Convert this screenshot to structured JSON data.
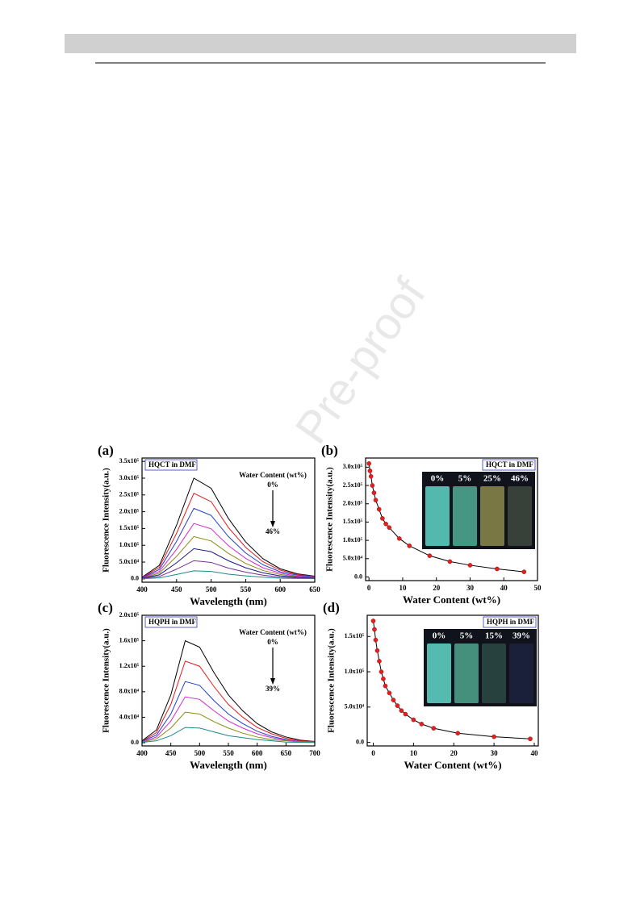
{
  "watermark": "Pre-proof",
  "chart_data": [
    {
      "type": "line",
      "panel": "(a)",
      "title": "HQCT in DMF",
      "annotation": "Water Content (wt%)",
      "arrow_start": "0%",
      "arrow_end": "46%",
      "xlabel": "Wavelength (nm)",
      "ylabel": "Fluorescence Intensity(a.u.)",
      "x": [
        400,
        425,
        450,
        475,
        500,
        525,
        550,
        575,
        600,
        625,
        650
      ],
      "xlim": [
        400,
        650
      ],
      "xticks": [
        400,
        450,
        500,
        550,
        600,
        650
      ],
      "ylim": [
        -10000,
        360000
      ],
      "yticks": [
        {
          "value": 0,
          "label": "0.0"
        },
        {
          "value": 50000,
          "label": "5.0x10⁴"
        },
        {
          "value": 100000,
          "label": "1.0x10⁵"
        },
        {
          "value": 150000,
          "label": "1.5x10⁵"
        },
        {
          "value": 200000,
          "label": "2.0x10⁵"
        },
        {
          "value": 250000,
          "label": "2.5x10⁵"
        },
        {
          "value": 300000,
          "label": "3.0x10⁵"
        },
        {
          "value": 350000,
          "label": "3.5x10⁵"
        }
      ],
      "series": [
        {
          "color": "#000000",
          "values": [
            5000,
            40000,
            160000,
            300000,
            270000,
            180000,
            110000,
            60000,
            30000,
            15000,
            8000
          ]
        },
        {
          "color": "#e41a1c",
          "values": [
            4000,
            34000,
            136000,
            255000,
            230000,
            153000,
            94000,
            51000,
            26000,
            13000,
            7000
          ]
        },
        {
          "color": "#1f3fd1",
          "values": [
            3500,
            28000,
            112000,
            210000,
            189000,
            126000,
            77000,
            42000,
            21000,
            11000,
            6000
          ]
        },
        {
          "color": "#d12bd1",
          "values": [
            3000,
            22000,
            88000,
            165000,
            149000,
            99000,
            61000,
            33000,
            17000,
            8000,
            4000
          ]
        },
        {
          "color": "#8a8a10",
          "values": [
            2000,
            17000,
            67000,
            126000,
            113000,
            76000,
            46000,
            25000,
            13000,
            6000,
            3000
          ]
        },
        {
          "color": "#1a1a8a",
          "values": [
            2000,
            12000,
            48000,
            90000,
            81000,
            54000,
            33000,
            18000,
            9000,
            5000,
            2000
          ]
        },
        {
          "color": "#7a2a9a",
          "values": [
            1000,
            7000,
            29000,
            54000,
            49000,
            32000,
            20000,
            11000,
            5000,
            3000,
            1000
          ]
        },
        {
          "color": "#1a8a8a",
          "values": [
            500,
            3000,
            13000,
            24000,
            22000,
            14000,
            9000,
            5000,
            2000,
            1000,
            500
          ]
        }
      ]
    },
    {
      "type": "scatter",
      "panel": "(b)",
      "title": "HQCT in DMF",
      "inset_labels": [
        "0%",
        "5%",
        "25%",
        "46%"
      ],
      "xlabel": "Water Content (wt%)",
      "ylabel": "Fluorescence Intensity(a.u.)",
      "color": "#e32020",
      "line_color": "#000000",
      "x": [
        0,
        0.3,
        0.6,
        1,
        1.5,
        2,
        3,
        4,
        5,
        6,
        9,
        12,
        18,
        24,
        30,
        38,
        46
      ],
      "values": [
        310000,
        290000,
        275000,
        250000,
        230000,
        210000,
        185000,
        160000,
        145000,
        135000,
        105000,
        85000,
        58000,
        42000,
        32000,
        22000,
        14000
      ],
      "xlim": [
        -1,
        50
      ],
      "xticks": [
        0,
        10,
        20,
        30,
        40,
        50
      ],
      "ylim": [
        -10000,
        325000
      ],
      "yticks": [
        {
          "value": 0,
          "label": "0.0"
        },
        {
          "value": 50000,
          "label": "5.0x10⁴"
        },
        {
          "value": 100000,
          "label": "1.0x10⁵"
        },
        {
          "value": 150000,
          "label": "1.5x10⁵"
        },
        {
          "value": 200000,
          "label": "2.0x10⁵"
        },
        {
          "value": 250000,
          "label": "2.5x10⁵"
        },
        {
          "value": 300000,
          "label": "3.0x10⁵"
        }
      ]
    },
    {
      "type": "line",
      "panel": "(c)",
      "title": "HQPH in DMF",
      "annotation": "Water Content (wt%)",
      "arrow_start": "0%",
      "arrow_end": "39%",
      "xlabel": "Wavelength (nm)",
      "ylabel": "Fluorescence Intensity(a.u.)",
      "x": [
        400,
        425,
        450,
        475,
        500,
        525,
        550,
        575,
        600,
        625,
        650,
        675,
        700
      ],
      "xlim": [
        400,
        700
      ],
      "xticks": [
        400,
        450,
        500,
        550,
        600,
        650,
        700
      ],
      "ylim": [
        -5000,
        200000
      ],
      "yticks": [
        {
          "value": 0,
          "label": "0.0"
        },
        {
          "value": 40000,
          "label": "4.0x10⁴"
        },
        {
          "value": 80000,
          "label": "8.0x10⁴"
        },
        {
          "value": 120000,
          "label": "1.2x10⁵"
        },
        {
          "value": 160000,
          "label": "1.6x10⁵"
        },
        {
          "value": 200000,
          "label": "2.0x10⁵"
        }
      ],
      "series": [
        {
          "color": "#000000",
          "values": [
            3000,
            20000,
            75000,
            160000,
            150000,
            110000,
            75000,
            50000,
            30000,
            17000,
            9000,
            4000,
            2000
          ]
        },
        {
          "color": "#e41a1c",
          "values": [
            2000,
            16000,
            60000,
            128000,
            120000,
            88000,
            60000,
            40000,
            24000,
            14000,
            7000,
            3000,
            2000
          ]
        },
        {
          "color": "#1f3fd1",
          "values": [
            2000,
            12000,
            45000,
            96000,
            90000,
            66000,
            45000,
            30000,
            18000,
            10000,
            5000,
            2000,
            1000
          ]
        },
        {
          "color": "#d12bd1",
          "values": [
            1000,
            9000,
            34000,
            72000,
            68000,
            50000,
            34000,
            23000,
            14000,
            8000,
            4000,
            2000,
            1000
          ]
        },
        {
          "color": "#8a8a10",
          "values": [
            1000,
            6000,
            23000,
            48000,
            45000,
            33000,
            23000,
            15000,
            9000,
            5000,
            3000,
            1000,
            500
          ]
        },
        {
          "color": "#1a8a8a",
          "values": [
            500,
            3000,
            11000,
            24000,
            23000,
            17000,
            11000,
            8000,
            5000,
            3000,
            1000,
            500,
            300
          ]
        }
      ]
    },
    {
      "type": "scatter",
      "panel": "(d)",
      "title": "HQPH in DMF",
      "inset_labels": [
        "0%",
        "5%",
        "15%",
        "39%"
      ],
      "xlabel": "Water Content (wt%)",
      "ylabel": "Fluorescence Intensity(a.u.)",
      "color": "#e32020",
      "line_color": "#000000",
      "x": [
        0,
        0.3,
        0.6,
        1,
        1.5,
        2,
        2.5,
        3,
        4,
        5,
        6,
        7,
        8,
        10,
        12,
        15,
        21,
        30,
        39
      ],
      "values": [
        172000,
        160000,
        145000,
        130000,
        115000,
        100000,
        90000,
        80000,
        70000,
        60000,
        52000,
        45000,
        40000,
        32000,
        26000,
        20000,
        13000,
        8000,
        5000
      ],
      "xlim": [
        -1.5,
        41
      ],
      "xticks": [
        0,
        10,
        20,
        30,
        40
      ],
      "ylim": [
        -5000,
        180000
      ],
      "yticks": [
        {
          "value": 0,
          "label": "0.0"
        },
        {
          "value": 50000,
          "label": "5.0x10⁴"
        },
        {
          "value": 100000,
          "label": "1.0x10⁵"
        },
        {
          "value": 150000,
          "label": "1.5x10⁵"
        }
      ]
    }
  ]
}
